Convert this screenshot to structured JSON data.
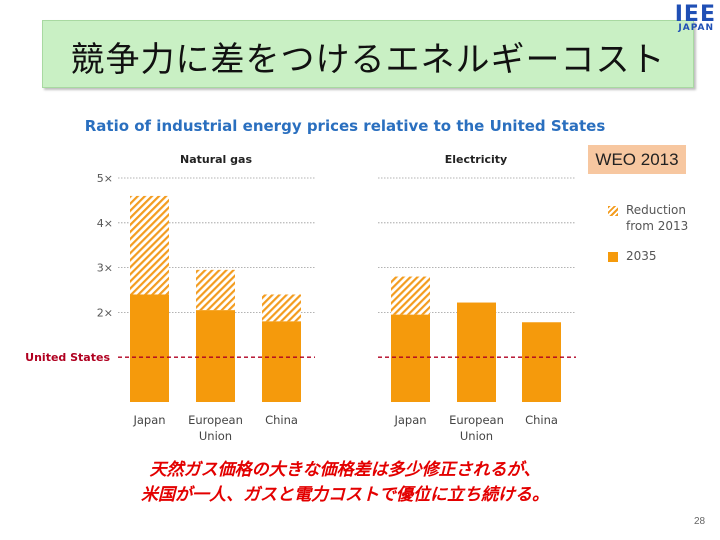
{
  "slide": {
    "title": "競争力に差をつけるエネルギーコスト",
    "logo_main": "IEE",
    "logo_sub": "JAPAN",
    "badge": "WEO 2013",
    "caption_line1": "天然ガス価格の大きな価格差は多少修正されるが、",
    "caption_line2": "米国が一人、ガスと電力コストで優位に立ち続ける。",
    "page_number": "28",
    "colors": {
      "title_bg": "#c9f0c4",
      "accent_blue": "#2a6fbf",
      "bar_orange": "#f59a0c",
      "reference_line": "#b00020",
      "caption_red": "#e30000",
      "badge_bg": "#f7c7a0"
    }
  },
  "chart_data": {
    "title": "Ratio of industrial energy prices relative to the United States",
    "legend": [
      {
        "label": "Reduction\nfrom 2013",
        "style": "hatched"
      },
      {
        "label": "2035",
        "style": "solid"
      }
    ],
    "legend_position": "right",
    "reference_line": {
      "label": "United States",
      "value": 1
    },
    "y_ticks": [
      "5×",
      "4×",
      "3×",
      "2×"
    ],
    "y_tick_values": [
      5,
      4,
      3,
      2
    ],
    "ylim": [
      0,
      5
    ],
    "grid": true,
    "panels": [
      {
        "title": "Natural gas",
        "type": "bar",
        "categories": [
          "Japan",
          "European\nUnion",
          "China"
        ],
        "series": [
          {
            "name": "2035",
            "values": [
              2.4,
              2.05,
              1.8
            ]
          },
          {
            "name": "Reduction from 2013",
            "values": [
              2.2,
              0.9,
              0.6
            ]
          }
        ]
      },
      {
        "title": "Electricity",
        "type": "bar",
        "categories": [
          "Japan",
          "European\nUnion",
          "China"
        ],
        "series": [
          {
            "name": "2035",
            "values": [
              1.95,
              2.22,
              1.78
            ]
          },
          {
            "name": "Reduction from 2013",
            "values": [
              0.85,
              0,
              0
            ]
          }
        ]
      }
    ]
  }
}
